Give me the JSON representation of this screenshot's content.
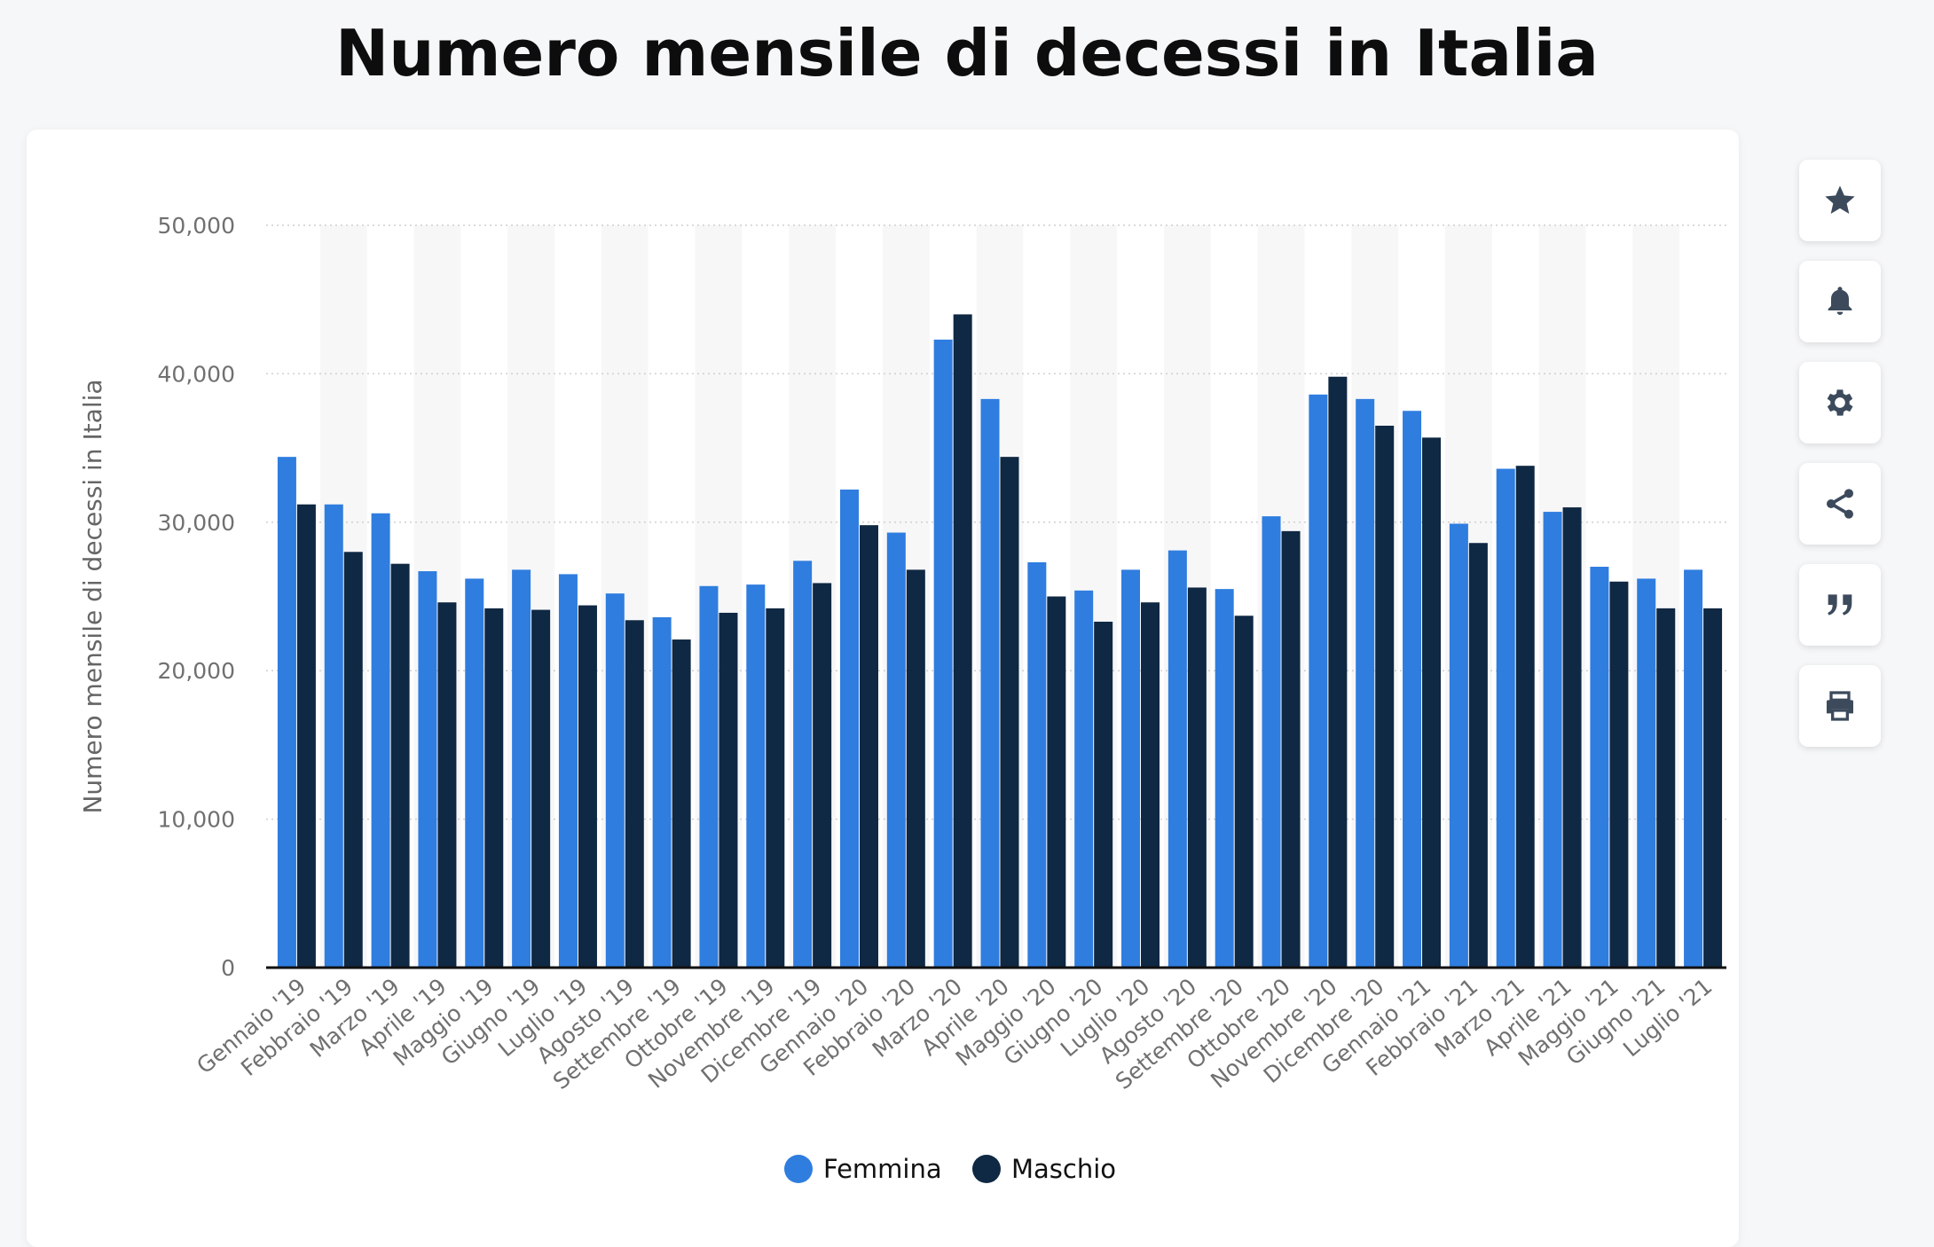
{
  "title": "Numero mensile di decessi in Italia",
  "tools": [
    {
      "name": "star-icon"
    },
    {
      "name": "bell-icon"
    },
    {
      "name": "gear-icon"
    },
    {
      "name": "share-icon"
    },
    {
      "name": "quote-icon"
    },
    {
      "name": "print-icon"
    }
  ],
  "chart_data": {
    "type": "bar",
    "title": "Numero mensile di decessi in Italia",
    "ylabel": "Numero mensile di decessi in Italia",
    "xlabel": "",
    "ylim": [
      0,
      50000
    ],
    "yticks": [
      "0",
      "10,000",
      "20,000",
      "30,000",
      "40,000",
      "50,000"
    ],
    "grid": true,
    "legend_position": "bottom",
    "categories": [
      "Gennaio '19",
      "Febbraio '19",
      "Marzo '19",
      "Aprile '19",
      "Maggio '19",
      "Giugno '19",
      "Luglio '19",
      "Agosto '19",
      "Settembre '19",
      "Ottobre '19",
      "Novembre '19",
      "Dicembre '19",
      "Gennaio '20",
      "Febbraio '20",
      "Marzo '20",
      "Aprile '20",
      "Maggio '20",
      "Giugno '20",
      "Luglio '20",
      "Agosto '20",
      "Settembre '20",
      "Ottobre '20",
      "Novembre '20",
      "Dicembre '20",
      "Gennaio '21",
      "Febbraio '21",
      "Marzo '21",
      "Aprile '21",
      "Maggio '21",
      "Giugno '21",
      "Luglio '21"
    ],
    "series": [
      {
        "name": "Femmina",
        "color": "#2f7ddf",
        "values": [
          34400,
          31200,
          30600,
          26700,
          26200,
          26800,
          26500,
          25200,
          23600,
          25700,
          25800,
          27400,
          32200,
          29300,
          42300,
          38300,
          27300,
          25400,
          26800,
          28100,
          25500,
          30400,
          38600,
          38300,
          37500,
          29900,
          33600,
          30700,
          27000,
          26200,
          26800
        ]
      },
      {
        "name": "Maschio",
        "color": "#0f2843",
        "values": [
          31200,
          28000,
          27200,
          24600,
          24200,
          24100,
          24400,
          23400,
          22100,
          23900,
          24200,
          25900,
          29800,
          26800,
          44000,
          34400,
          25000,
          23300,
          24600,
          25600,
          23700,
          29400,
          39800,
          36500,
          35700,
          28600,
          33800,
          31000,
          26000,
          24200,
          24200
        ]
      }
    ]
  }
}
